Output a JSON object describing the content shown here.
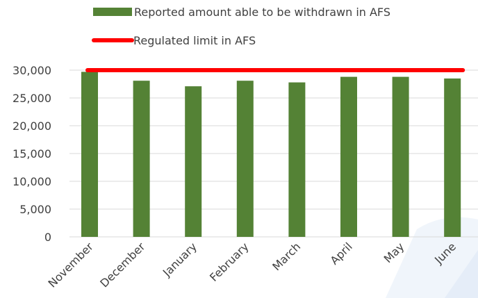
{
  "chart_data": {
    "type": "bar",
    "categories": [
      "November",
      "December",
      "January",
      "February",
      "March",
      "April",
      "May",
      "June"
    ],
    "series": [
      {
        "name": "Reported amount able to be withdrawn in AFS",
        "type": "bar",
        "color": "#548235",
        "values": [
          29700,
          28100,
          27100,
          28100,
          27800,
          28800,
          28800,
          28500
        ]
      },
      {
        "name": "Regulated limit in AFS",
        "type": "line",
        "color": "#ff0000",
        "values": [
          30000,
          30000,
          30000,
          30000,
          30000,
          30000,
          30000,
          30000
        ]
      }
    ],
    "ylim": [
      0,
      30000
    ],
    "yticks": [
      0,
      5000,
      10000,
      15000,
      20000,
      25000,
      30000
    ],
    "ytick_labels": [
      "0",
      "5,000",
      "10,000",
      "15,000",
      "20,000",
      "25,000",
      "30,000"
    ],
    "grid": true,
    "legend_position": "top",
    "title": "",
    "xlabel": "",
    "ylabel": ""
  }
}
